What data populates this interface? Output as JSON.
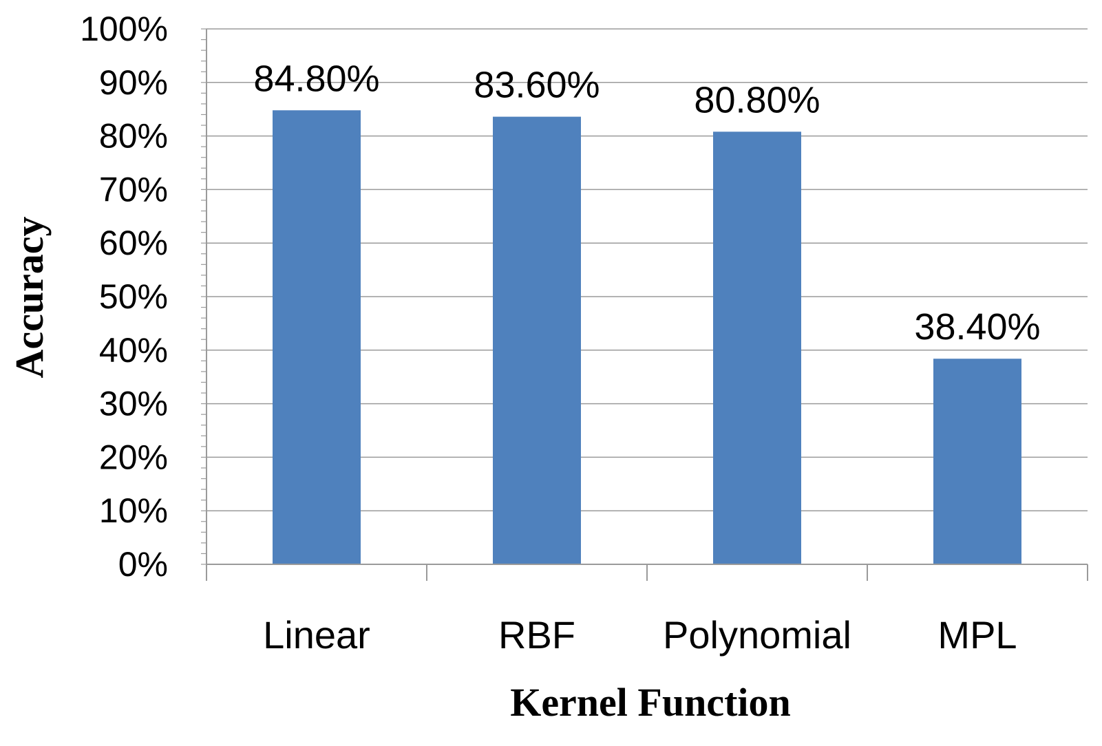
{
  "chart_data": {
    "type": "bar",
    "categories": [
      "Linear",
      "RBF",
      "Polynomial",
      "MPL"
    ],
    "values": [
      84.8,
      83.6,
      80.8,
      38.4
    ],
    "data_labels": [
      "84.80%",
      "83.60%",
      "80.80%",
      "38.40%"
    ],
    "title": "",
    "xlabel": "Kernel Function",
    "ylabel": "Accuracy",
    "ylim": [
      0,
      100
    ],
    "yticks": [
      0,
      10,
      20,
      30,
      40,
      50,
      60,
      70,
      80,
      90,
      100
    ],
    "ytick_labels": [
      "0%",
      "10%",
      "20%",
      "30%",
      "40%",
      "50%",
      "60%",
      "70%",
      "80%",
      "90%",
      "100%"
    ],
    "grid": true,
    "legend": "none",
    "bar_color": "#4f81bd"
  }
}
